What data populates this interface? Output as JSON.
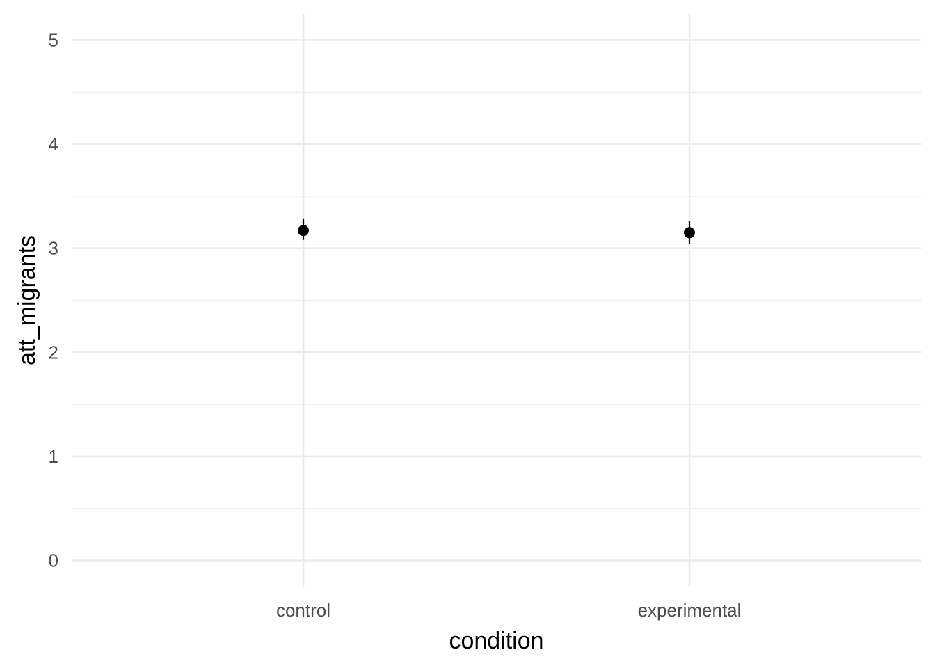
{
  "chart_data": {
    "type": "scatter",
    "categories": [
      "control",
      "experimental"
    ],
    "points": [
      {
        "category": "control",
        "y": 3.17,
        "ymin": 3.08,
        "ymax": 3.28
      },
      {
        "category": "experimental",
        "y": 3.15,
        "ymin": 3.04,
        "ymax": 3.26
      }
    ],
    "xlabel": "condition",
    "ylabel": "att_migrants",
    "ylim": [
      -0.25,
      5.25
    ],
    "yticks": [
      0,
      1,
      2,
      3,
      4,
      5
    ],
    "ytick_labels": [
      "0",
      "1",
      "2",
      "3",
      "4",
      "5"
    ],
    "grid": true,
    "point_color": "#000000",
    "grid_color": "#ebebeb"
  }
}
